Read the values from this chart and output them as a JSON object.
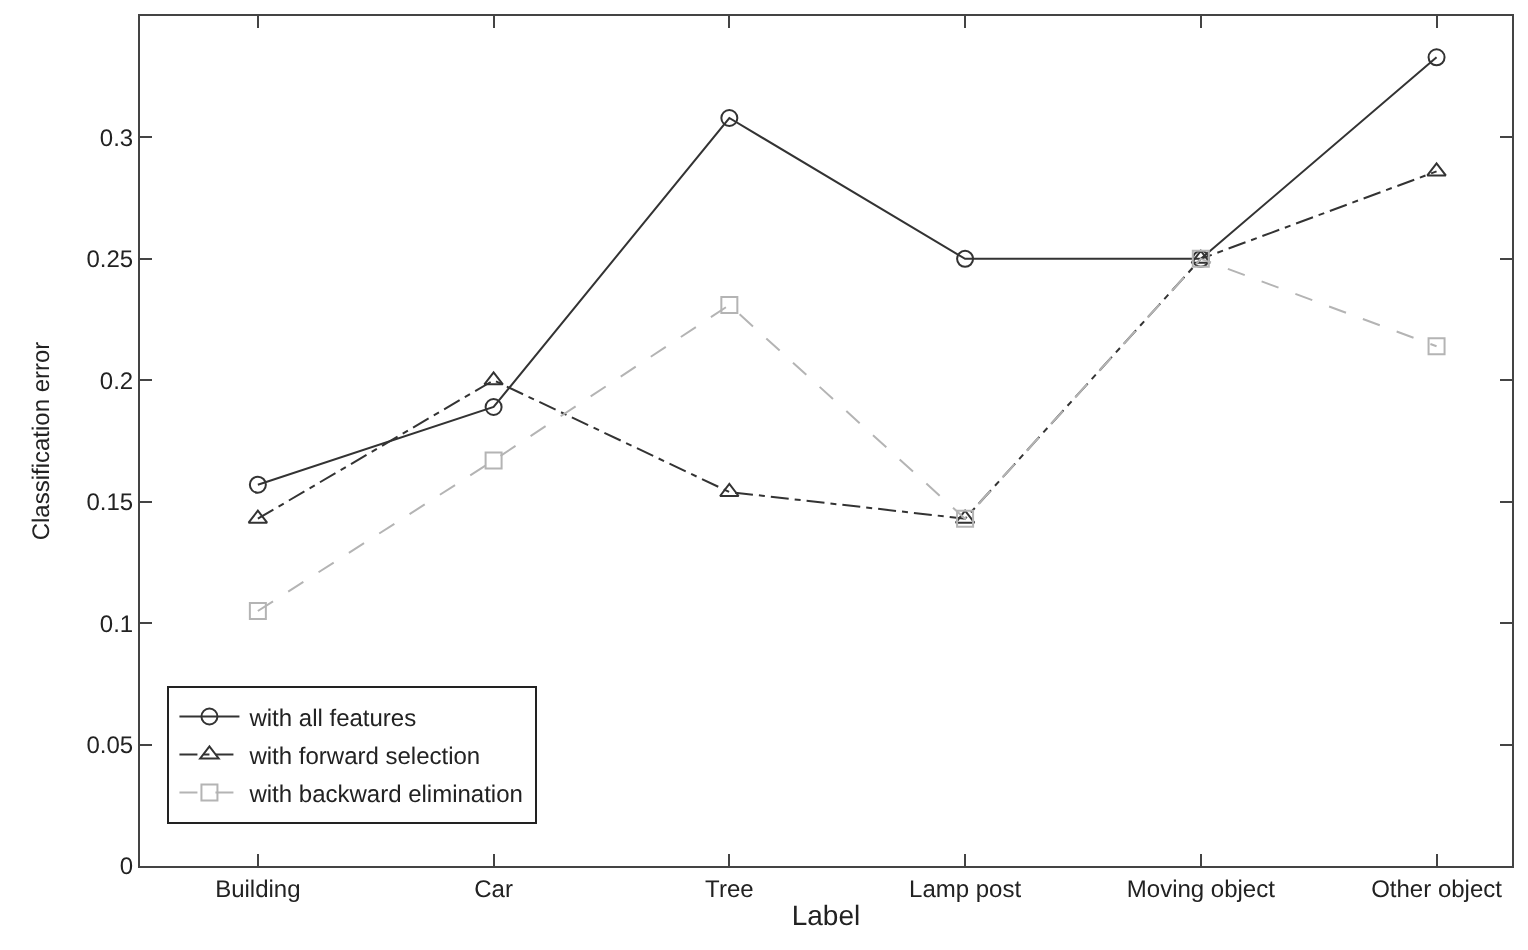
{
  "chart_data": {
    "type": "line",
    "xlabel": "Label",
    "ylabel": "Classification error",
    "categories": [
      "Building",
      "Car",
      "Tree",
      "Lamp post",
      "Moving object",
      "Other object"
    ],
    "series": [
      {
        "name": "with all features",
        "color": "#333333",
        "marker": "circle",
        "line_style": "solid",
        "values": [
          0.157,
          0.189,
          0.308,
          0.25,
          0.25,
          0.333
        ]
      },
      {
        "name": "with forward selection",
        "color": "#333333",
        "marker": "triangle",
        "line_style": "dashdot",
        "values": [
          0.143,
          0.2,
          0.154,
          0.143,
          0.25,
          0.286
        ]
      },
      {
        "name": "with backward elimination",
        "color": "#b4b4b4",
        "marker": "square",
        "line_style": "dashed",
        "values": [
          0.105,
          0.167,
          0.231,
          0.143,
          0.25,
          0.214
        ]
      }
    ],
    "ylim": [
      0,
      0.35
    ],
    "yticks": [
      0,
      0.05,
      0.1,
      0.15,
      0.2,
      0.25,
      0.3
    ],
    "legend": "bottom left"
  }
}
